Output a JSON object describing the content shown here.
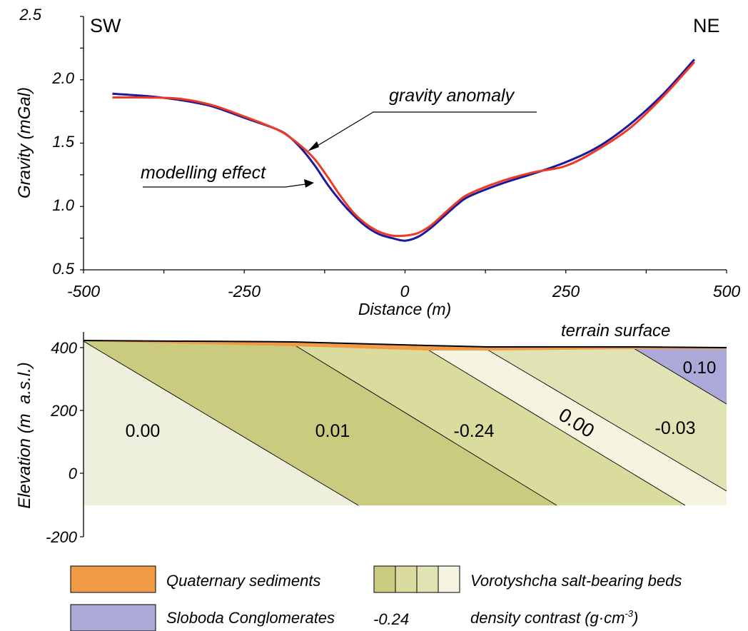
{
  "chart_data": [
    {
      "type": "line",
      "corner_labels": {
        "left": "SW",
        "right": "NE"
      },
      "xlabel": "Distance (m)",
      "ylabel": "Gravity (mGal)",
      "xlim": [
        -500,
        500
      ],
      "ylim": [
        0.5,
        2.5
      ],
      "x_ticks": [
        "-500",
        "-250",
        "0",
        "250",
        "500"
      ],
      "y_ticks": [
        "0.5",
        "1.0",
        "1.5",
        "2.0",
        "2.5"
      ],
      "grid": false,
      "series": [
        {
          "name": "gravity anomaly",
          "color": "#ee3a24",
          "x": [
            -455,
            -400,
            -350,
            -300,
            -250,
            -200,
            -180,
            -160,
            -140,
            -120,
            -100,
            -80,
            -60,
            -40,
            -20,
            0,
            20,
            40,
            60,
            80,
            100,
            150,
            200,
            250,
            300,
            350,
            400,
            450
          ],
          "y": [
            1.86,
            1.86,
            1.85,
            1.8,
            1.71,
            1.61,
            1.55,
            1.47,
            1.37,
            1.23,
            1.08,
            0.95,
            0.86,
            0.8,
            0.77,
            0.77,
            0.79,
            0.85,
            0.94,
            1.03,
            1.1,
            1.2,
            1.27,
            1.32,
            1.45,
            1.62,
            1.86,
            2.14
          ]
        },
        {
          "name": "modelling effect",
          "color": "#1c1a9a",
          "x": [
            -455,
            -400,
            -350,
            -300,
            -250,
            -200,
            -180,
            -160,
            -140,
            -120,
            -100,
            -80,
            -60,
            -40,
            -20,
            0,
            20,
            40,
            60,
            80,
            100,
            150,
            200,
            250,
            300,
            350,
            400,
            450
          ],
          "y": [
            1.89,
            1.87,
            1.84,
            1.79,
            1.7,
            1.61,
            1.55,
            1.45,
            1.32,
            1.17,
            1.04,
            0.93,
            0.84,
            0.78,
            0.75,
            0.73,
            0.76,
            0.83,
            0.92,
            1.01,
            1.08,
            1.18,
            1.26,
            1.35,
            1.47,
            1.65,
            1.88,
            2.16
          ]
        }
      ],
      "annotations": [
        {
          "text": "gravity anomaly",
          "color": "#ee3a24"
        },
        {
          "text": "modelling effect",
          "color": "#1c1a9a"
        }
      ]
    },
    {
      "type": "area",
      "ylabel": "Elevation (m  a.s.l.)",
      "ylim": [
        -200,
        400
      ],
      "y_ticks": [
        "400",
        "200",
        "0",
        "-200"
      ],
      "surface_label": "terrain surface",
      "bodies": [
        {
          "label": "0.00",
          "color": "#eeefdc"
        },
        {
          "label": "0.01",
          "color": "#cbcb80"
        },
        {
          "label": "-0.24",
          "color": "#dadc9d"
        },
        {
          "label": "0.00",
          "color": "#f5f4e1"
        },
        {
          "label": "-0.03",
          "color": "#e2e3b4"
        },
        {
          "label": "0.10",
          "color": "#aaa9d7"
        }
      ],
      "quaternary_color": "#f19a45"
    }
  ],
  "legend": {
    "quaternary": "Quaternary sediments",
    "vorotyshcha": "Vorotyshcha salt-bearing beds",
    "sloboda": "Sloboda Conglomerates",
    "density_value": "-0.24",
    "density_text": "density contrast (g·cm",
    "density_exp": "-3",
    "density_close": ")",
    "quaternary_color": "#f19a45",
    "sloboda_color": "#aaa9d7",
    "vorotyshcha_colors": [
      "#cbcb80",
      "#dadc9d",
      "#e2e3b4",
      "#f5f4e1"
    ]
  }
}
